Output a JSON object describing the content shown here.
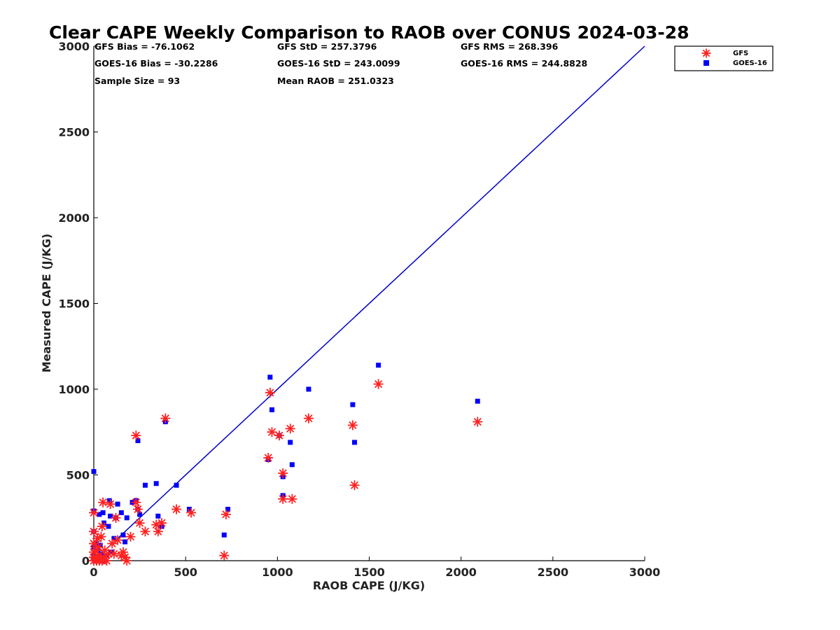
{
  "chart_data": {
    "type": "scatter",
    "title": "Clear CAPE Weekly Comparison to RAOB over CONUS 2024-03-28",
    "xlabel": "RAOB CAPE (J/KG)",
    "ylabel": "Measured CAPE (J/KG)",
    "xlim": [
      0,
      3000
    ],
    "ylim": [
      0,
      3000
    ],
    "x_ticks": [
      "0",
      "500",
      "1000",
      "1500",
      "2000",
      "2500",
      "3000"
    ],
    "y_ticks": [
      "0",
      "500",
      "1000",
      "1500",
      "2000",
      "2500",
      "3000"
    ],
    "grid": false,
    "legend_position": "top-right",
    "stats": {
      "gfs_bias": "GFS Bias = -76.1062",
      "goes_bias": "GOES-16 Bias = -30.2286",
      "sample_size": "Sample Size = 93",
      "gfs_std": "GFS StD = 257.3796",
      "goes_std": "GOES-16 StD = 243.0099",
      "mean_raob": "Mean RAOB = 251.0323",
      "gfs_rms": "GFS RMS = 268.396",
      "goes_rms": "GOES-16 RMS = 244.8828"
    },
    "reference_line": {
      "color": "#0000cc",
      "from": [
        0,
        0
      ],
      "to": [
        3000,
        3000
      ]
    },
    "series": [
      {
        "name": "GFS",
        "marker": "asterisk",
        "color": "#ff2020",
        "points": [
          [
            0,
            280
          ],
          [
            0,
            170
          ],
          [
            0,
            100
          ],
          [
            0,
            50
          ],
          [
            0,
            20
          ],
          [
            0,
            0
          ],
          [
            10,
            10
          ],
          [
            10,
            60
          ],
          [
            15,
            0
          ],
          [
            20,
            130
          ],
          [
            20,
            30
          ],
          [
            25,
            80
          ],
          [
            30,
            0
          ],
          [
            35,
            10
          ],
          [
            40,
            140
          ],
          [
            45,
            200
          ],
          [
            45,
            0
          ],
          [
            50,
            340
          ],
          [
            55,
            20
          ],
          [
            60,
            60
          ],
          [
            70,
            0
          ],
          [
            80,
            40
          ],
          [
            90,
            330
          ],
          [
            100,
            100
          ],
          [
            110,
            40
          ],
          [
            120,
            250
          ],
          [
            130,
            120
          ],
          [
            150,
            30
          ],
          [
            160,
            50
          ],
          [
            170,
            20
          ],
          [
            180,
            0
          ],
          [
            200,
            140
          ],
          [
            230,
            730
          ],
          [
            230,
            340
          ],
          [
            240,
            300
          ],
          [
            250,
            220
          ],
          [
            280,
            170
          ],
          [
            340,
            210
          ],
          [
            350,
            170
          ],
          [
            370,
            220
          ],
          [
            390,
            830
          ],
          [
            450,
            300
          ],
          [
            530,
            280
          ],
          [
            710,
            30
          ],
          [
            720,
            270
          ],
          [
            950,
            600
          ],
          [
            960,
            980
          ],
          [
            970,
            750
          ],
          [
            1010,
            730
          ],
          [
            1030,
            510
          ],
          [
            1030,
            360
          ],
          [
            1070,
            770
          ],
          [
            1080,
            360
          ],
          [
            1170,
            830
          ],
          [
            1410,
            790
          ],
          [
            1420,
            440
          ],
          [
            1550,
            1030
          ],
          [
            2090,
            810
          ]
        ]
      },
      {
        "name": "GOES-16",
        "marker": "square",
        "color": "#0000ff",
        "points": [
          [
            0,
            520
          ],
          [
            0,
            290
          ],
          [
            0,
            170
          ],
          [
            0,
            80
          ],
          [
            0,
            30
          ],
          [
            5,
            0
          ],
          [
            10,
            20
          ],
          [
            15,
            100
          ],
          [
            20,
            60
          ],
          [
            25,
            0
          ],
          [
            30,
            270
          ],
          [
            35,
            90
          ],
          [
            40,
            40
          ],
          [
            45,
            10
          ],
          [
            50,
            280
          ],
          [
            55,
            220
          ],
          [
            60,
            0
          ],
          [
            70,
            30
          ],
          [
            80,
            200
          ],
          [
            85,
            350
          ],
          [
            90,
            260
          ],
          [
            95,
            50
          ],
          [
            110,
            130
          ],
          [
            120,
            250
          ],
          [
            130,
            330
          ],
          [
            150,
            280
          ],
          [
            160,
            150
          ],
          [
            170,
            110
          ],
          [
            180,
            250
          ],
          [
            210,
            340
          ],
          [
            230,
            350
          ],
          [
            240,
            700
          ],
          [
            240,
            300
          ],
          [
            250,
            270
          ],
          [
            280,
            440
          ],
          [
            340,
            450
          ],
          [
            350,
            260
          ],
          [
            370,
            200
          ],
          [
            390,
            810
          ],
          [
            450,
            440
          ],
          [
            520,
            300
          ],
          [
            710,
            150
          ],
          [
            730,
            300
          ],
          [
            950,
            590
          ],
          [
            960,
            1070
          ],
          [
            970,
            880
          ],
          [
            1010,
            730
          ],
          [
            1030,
            490
          ],
          [
            1030,
            380
          ],
          [
            1070,
            690
          ],
          [
            1080,
            560
          ],
          [
            1170,
            1000
          ],
          [
            1410,
            910
          ],
          [
            1420,
            690
          ],
          [
            1550,
            1140
          ],
          [
            2090,
            930
          ]
        ]
      }
    ]
  }
}
